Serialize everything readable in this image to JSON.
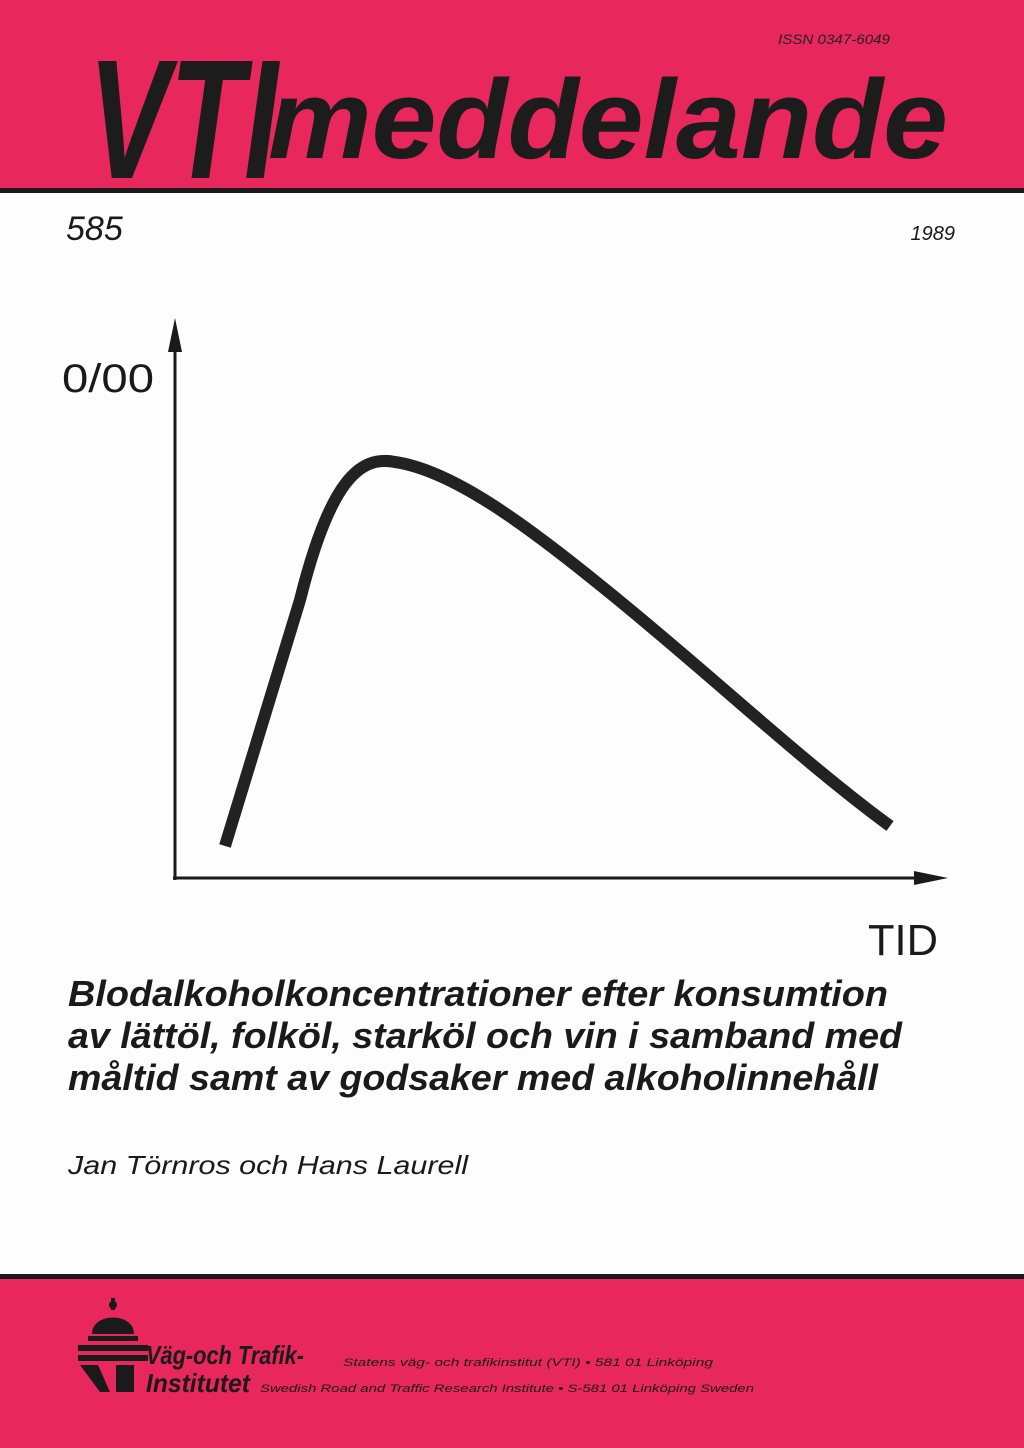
{
  "header": {
    "logo": "VTI",
    "series": "meddelande",
    "issn": "ISSN 0347-6049"
  },
  "issue": {
    "number": "585",
    "year": "1989"
  },
  "figure": {
    "y_label": "0/00",
    "x_label": "TID"
  },
  "title": [
    "Blodalkoholkoncentrationer efter konsumtion",
    "av lättöl, folköl, starköl och vin i samband med",
    "måltid samt av godsaker med alkoholinnehåll"
  ],
  "authors": "Jan Törnros och Hans Laurell",
  "footer": {
    "org_line1": "Väg-och Trafik-",
    "org_line2": "Institutet",
    "address_sv": "Statens väg- och trafikinstitut (VTI) • 581 01 Linköping",
    "address_en": "Swedish Road and Traffic Research Institute • S-581 01 Linköping Sweden"
  }
}
